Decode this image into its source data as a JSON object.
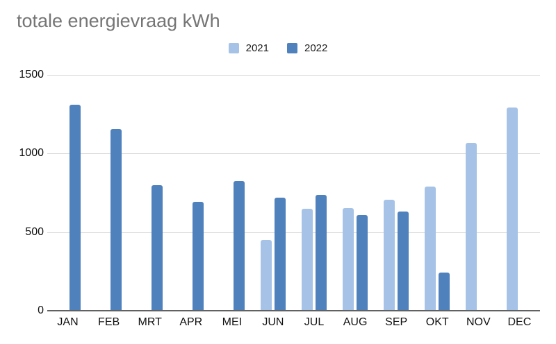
{
  "title": "totale energievraag kWh",
  "colors": {
    "title_text": "#757575",
    "axis_text": "#111111",
    "gridline": "#d9d9d9",
    "axis_line": "#616161",
    "series_2021": "#a6c3e7",
    "series_2022": "#4f81bd",
    "background": "#ffffff"
  },
  "chart_data": {
    "type": "bar",
    "title": "totale energievraag kWh",
    "xlabel": "",
    "ylabel": "",
    "categories": [
      "JAN",
      "FEB",
      "MRT",
      "APR",
      "MEI",
      "JUN",
      "JUL",
      "AUG",
      "SEP",
      "OKT",
      "NOV",
      "DEC"
    ],
    "series": [
      {
        "name": "2021",
        "color": "#a6c3e7",
        "values": [
          null,
          null,
          null,
          null,
          null,
          450,
          650,
          655,
          705,
          790,
          1070,
          1295
        ]
      },
      {
        "name": "2022",
        "color": "#4f81bd",
        "values": [
          1310,
          1155,
          800,
          695,
          825,
          720,
          735,
          610,
          630,
          245,
          null,
          null
        ]
      }
    ],
    "ylim": [
      0,
      1500
    ],
    "yticks": [
      0,
      500,
      1000,
      1500
    ],
    "grid": true,
    "legend_position": "top-center"
  }
}
